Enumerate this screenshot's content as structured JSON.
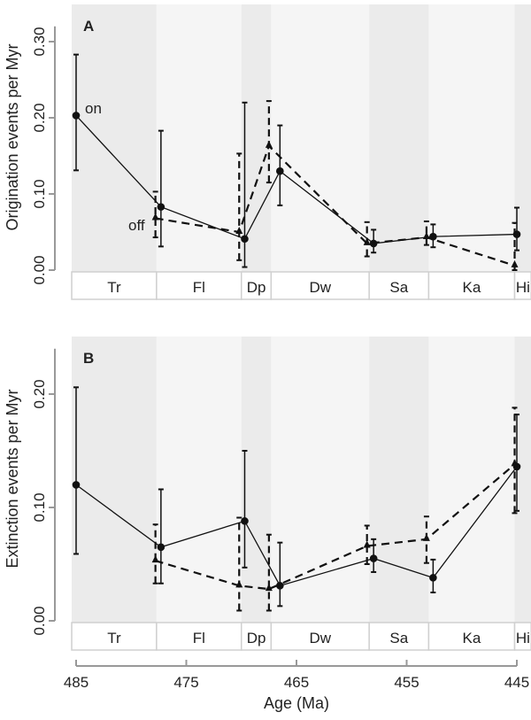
{
  "chart_data": [
    {
      "type": "line",
      "panel_label": "A",
      "ylabel": "Origination events per Myr",
      "ylim": [
        0,
        0.32
      ],
      "yticks": [
        "0.00",
        "0.10",
        "0.20",
        "0.30"
      ],
      "ytick_values": [
        0,
        0.1,
        0.2,
        0.3
      ],
      "annotations": {
        "on": "on",
        "off": "off"
      },
      "series": [
        {
          "name": "on",
          "marker": "circle",
          "line": "solid",
          "x": [
            485.0,
            477.3,
            469.7,
            466.5,
            458.0,
            452.6,
            445.0
          ],
          "y": [
            0.203,
            0.083,
            0.041,
            0.13,
            0.035,
            0.044,
            0.047
          ],
          "lower": [
            0.131,
            0.031,
            0.004,
            0.085,
            0.023,
            0.03,
            0.026
          ],
          "upper": [
            0.283,
            0.183,
            0.22,
            0.19,
            0.053,
            0.06,
            0.082
          ]
        },
        {
          "name": "off",
          "marker": "triangle",
          "line": "dashed",
          "x": [
            477.8,
            470.2,
            467.5,
            458.6,
            453.2,
            445.2
          ],
          "y": [
            0.068,
            0.05,
            0.163,
            0.035,
            0.043,
            0.006
          ],
          "lower": [
            0.043,
            0.013,
            0.115,
            0.018,
            0.033,
            0.0
          ],
          "upper": [
            0.103,
            0.153,
            0.222,
            0.063,
            0.064,
            0.062
          ]
        }
      ]
    },
    {
      "type": "line",
      "panel_label": "B",
      "ylabel": "Extinction events per Myr",
      "ylim": [
        0,
        0.24
      ],
      "yticks": [
        "0.00",
        "0.10",
        "0.20"
      ],
      "ytick_values": [
        0,
        0.1,
        0.2
      ],
      "xlabel": "Age (Ma)",
      "xticks": [
        "485",
        "475",
        "465",
        "455",
        "445"
      ],
      "xtick_values": [
        485,
        475,
        465,
        455,
        445
      ],
      "series": [
        {
          "name": "on",
          "marker": "circle",
          "line": "solid",
          "x": [
            485.0,
            477.3,
            469.7,
            466.5,
            458.0,
            452.6,
            445.0
          ],
          "y": [
            0.12,
            0.065,
            0.088,
            0.031,
            0.055,
            0.038,
            0.136
          ],
          "lower": [
            0.059,
            0.033,
            0.047,
            0.013,
            0.043,
            0.025,
            0.097
          ],
          "upper": [
            0.206,
            0.116,
            0.15,
            0.069,
            0.072,
            0.054,
            0.182
          ]
        },
        {
          "name": "off",
          "marker": "triangle",
          "line": "dashed",
          "x": [
            477.8,
            470.2,
            467.5,
            458.6,
            453.2,
            445.2
          ],
          "y": [
            0.053,
            0.031,
            0.028,
            0.066,
            0.072,
            0.138
          ],
          "lower": [
            0.033,
            0.009,
            0.009,
            0.05,
            0.051,
            0.095
          ],
          "upper": [
            0.085,
            0.091,
            0.076,
            0.084,
            0.092,
            0.188
          ]
        }
      ]
    }
  ],
  "stages": [
    {
      "label": "Tr",
      "start": 485.4,
      "end": 477.7,
      "shade": "#ebebeb"
    },
    {
      "label": "Fl",
      "start": 477.7,
      "end": 470.0,
      "shade": "#f5f5f5"
    },
    {
      "label": "Dp",
      "start": 470.0,
      "end": 467.3,
      "shade": "#ebebeb"
    },
    {
      "label": "Dw",
      "start": 467.3,
      "end": 458.4,
      "shade": "#f5f5f5"
    },
    {
      "label": "Sa",
      "start": 458.4,
      "end": 453.0,
      "shade": "#ebebeb"
    },
    {
      "label": "Ka",
      "start": 453.0,
      "end": 445.2,
      "shade": "#f5f5f5"
    },
    {
      "label": "Hi",
      "start": 445.2,
      "end": 443.7,
      "shade": "#ebebeb"
    }
  ]
}
